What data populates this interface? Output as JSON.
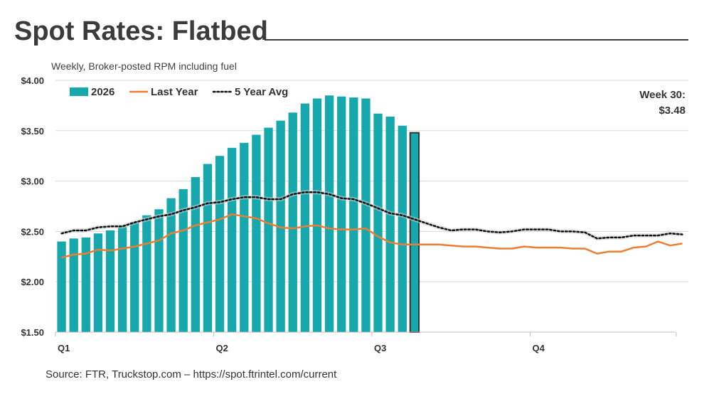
{
  "header": {
    "title": "Spot Rates: Flatbed",
    "subtitle": "Weekly, Broker-posted RPM including fuel"
  },
  "footer": {
    "source": "Source: FTR, Truckstop.com – https://spot.ftrintel.com/current"
  },
  "callout": {
    "line1": "Week 30:",
    "line2": "$3.48"
  },
  "colors": {
    "bars": "#17a8ad",
    "last_year": "#ed7d31",
    "avg": "#111111",
    "axis": "#bfbfbf",
    "grid": "#d9d9d9",
    "highlight_outline": "#333333"
  },
  "chart_data": {
    "type": "bar",
    "ylim": [
      1.5,
      4.0
    ],
    "yticks": [
      "$1.50",
      "$2.00",
      "$2.50",
      "$3.00",
      "$3.50",
      "$4.00"
    ],
    "ytick_values": [
      1.5,
      2.0,
      2.5,
      3.0,
      3.5,
      4.0
    ],
    "x_weeks": 52,
    "xlabels": [
      {
        "label": "Q1",
        "week": 1
      },
      {
        "label": "Q2",
        "week": 14
      },
      {
        "label": "Q3",
        "week": 27
      },
      {
        "label": "Q4",
        "week": 40
      }
    ],
    "grid": true,
    "legend": "top-left",
    "legend_entries": [
      "2026",
      "Last Year",
      "5 Year Avg"
    ],
    "highlight_week": 30,
    "series": [
      {
        "name": "2026",
        "type": "bar",
        "values": [
          2.4,
          2.43,
          2.44,
          2.48,
          2.51,
          2.55,
          2.59,
          2.66,
          2.72,
          2.83,
          2.92,
          3.04,
          3.17,
          3.25,
          3.33,
          3.38,
          3.46,
          3.53,
          3.6,
          3.68,
          3.77,
          3.82,
          3.85,
          3.84,
          3.83,
          3.82,
          3.67,
          3.64,
          3.55,
          3.48
        ]
      },
      {
        "name": "Last Year",
        "type": "line",
        "values": [
          2.24,
          2.27,
          2.28,
          2.32,
          2.31,
          2.33,
          2.35,
          2.38,
          2.41,
          2.48,
          2.51,
          2.56,
          2.59,
          2.62,
          2.67,
          2.65,
          2.63,
          2.58,
          2.54,
          2.53,
          2.55,
          2.56,
          2.53,
          2.52,
          2.52,
          2.53,
          2.45,
          2.39,
          2.37,
          2.37,
          2.37,
          2.37,
          2.36,
          2.35,
          2.35,
          2.34,
          2.33,
          2.33,
          2.35,
          2.34,
          2.34,
          2.34,
          2.33,
          2.33,
          2.28,
          2.3,
          2.3,
          2.34,
          2.35,
          2.4,
          2.36,
          2.38
        ]
      },
      {
        "name": "5 Year Avg",
        "type": "line",
        "values": [
          2.48,
          2.51,
          2.51,
          2.54,
          2.55,
          2.55,
          2.59,
          2.62,
          2.65,
          2.67,
          2.71,
          2.74,
          2.78,
          2.79,
          2.82,
          2.84,
          2.84,
          2.82,
          2.82,
          2.87,
          2.89,
          2.89,
          2.87,
          2.83,
          2.82,
          2.78,
          2.73,
          2.68,
          2.66,
          2.62,
          2.58,
          2.54,
          2.51,
          2.52,
          2.52,
          2.5,
          2.49,
          2.5,
          2.52,
          2.52,
          2.52,
          2.5,
          2.5,
          2.49,
          2.43,
          2.44,
          2.44,
          2.46,
          2.46,
          2.46,
          2.48,
          2.47
        ]
      }
    ]
  }
}
